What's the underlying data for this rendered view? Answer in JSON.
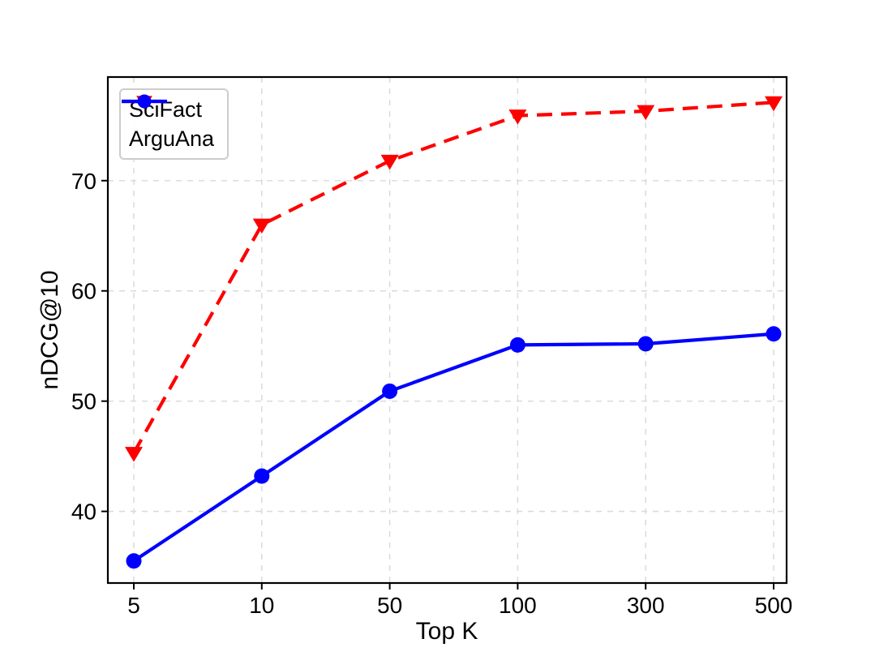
{
  "chart_data": {
    "type": "line",
    "title": "",
    "xlabel": "Top K",
    "ylabel": "nDCG@10",
    "categories": [
      "5",
      "10",
      "50",
      "100",
      "300",
      "500"
    ],
    "x_axis_type": "categorical",
    "yticks": [
      40,
      50,
      60,
      70
    ],
    "ylim": [
      33.5,
      79.4
    ],
    "grid": true,
    "grid_style": "dashed",
    "legend_position": "upper-left",
    "series": [
      {
        "name": "SciFact",
        "values": [
          45.3,
          66.0,
          71.8,
          75.9,
          76.3,
          77.1
        ],
        "color": "#ff0000",
        "line_style": "dashed",
        "marker": "triangle-down"
      },
      {
        "name": "ArguAna",
        "values": [
          35.5,
          43.2,
          50.9,
          55.1,
          55.2,
          56.1
        ],
        "color": "#0000ff",
        "line_style": "solid",
        "marker": "circle"
      }
    ]
  },
  "colors": {
    "background": "#ffffff",
    "axis": "#000000",
    "gridline": "#d9d9d9",
    "legend_border": "#cccccc"
  }
}
